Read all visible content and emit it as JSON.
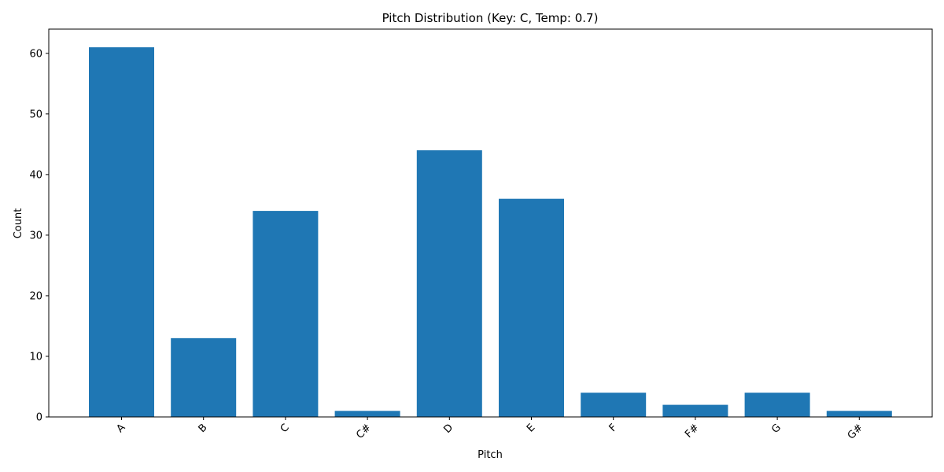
{
  "chart_data": {
    "type": "bar",
    "title": "Pitch Distribution (Key: C, Temp: 0.7)",
    "xlabel": "Pitch",
    "ylabel": "Count",
    "categories": [
      "A",
      "B",
      "C",
      "C#",
      "D",
      "E",
      "F",
      "F#",
      "G",
      "G#"
    ],
    "values": [
      61,
      13,
      34,
      1,
      44,
      36,
      4,
      2,
      4,
      1
    ],
    "ylim": [
      0,
      64
    ],
    "yticks": [
      0,
      10,
      20,
      30,
      40,
      50,
      60
    ],
    "bar_color": "#1f77b4",
    "grid": false,
    "legend": "none"
  }
}
